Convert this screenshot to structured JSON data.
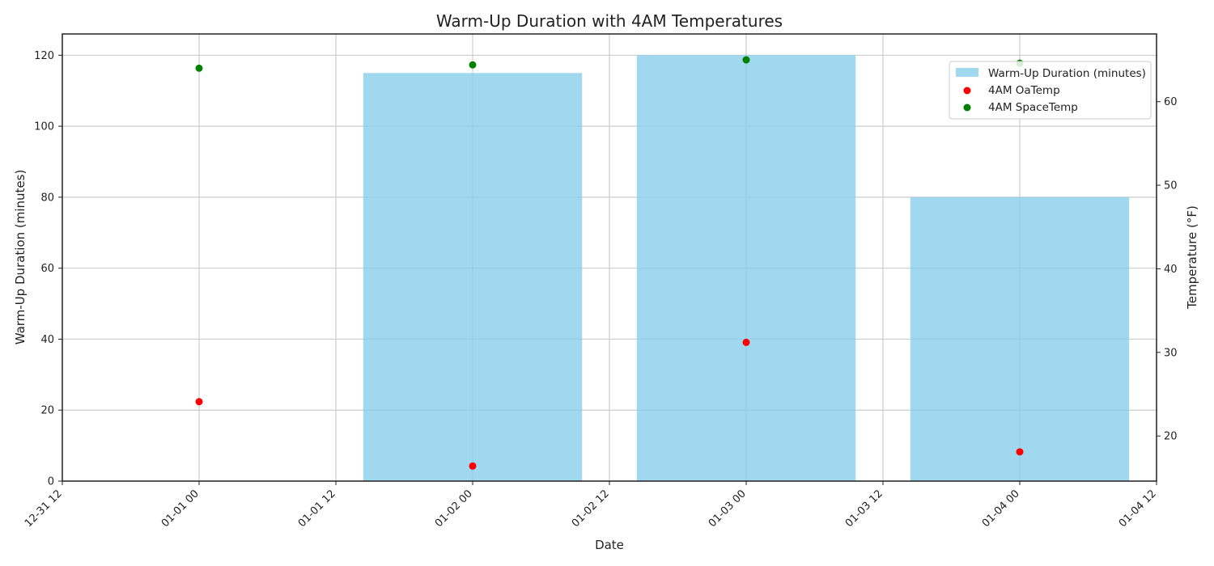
{
  "chart_data": {
    "type": "bar",
    "title": "Warm-Up Duration with 4AM Temperatures",
    "xlabel": "Date",
    "ylabel": "Warm-Up Duration (minutes)",
    "y2label": "Temperature (°F)",
    "x_dates": [
      "2021-01-01",
      "2021-01-02",
      "2021-01-03",
      "2021-01-04"
    ],
    "xlim": [
      "2020-12-31 12:00",
      "2021-01-04 12:00"
    ],
    "ylim": [
      0,
      126
    ],
    "y2lim": [
      14.6,
      68.1
    ],
    "xticks": [
      "12-31 12",
      "01-01 00",
      "01-01 12",
      "01-02 00",
      "01-02 12",
      "01-03 00",
      "01-03 12",
      "01-04 00",
      "01-04 12"
    ],
    "yticks": [
      "0",
      "20",
      "40",
      "60",
      "80",
      "100",
      "120"
    ],
    "y2ticks": [
      "20",
      "30",
      "40",
      "50",
      "60"
    ],
    "grid": true,
    "legend_position": "upper right",
    "series": [
      {
        "name": "Warm-Up Duration (minutes)",
        "kind": "bar",
        "axis": "left",
        "color": "#87ceeb",
        "values": [
          0,
          115,
          120,
          80
        ]
      },
      {
        "name": "4AM OaTemp",
        "kind": "scatter",
        "axis": "right",
        "color": "#ff0000",
        "values": [
          24.1,
          16.4,
          31.2,
          18.1
        ]
      },
      {
        "name": "4AM SpaceTemp",
        "kind": "scatter",
        "axis": "right",
        "color": "#008000",
        "values": [
          64.0,
          64.4,
          65.0,
          64.6
        ]
      }
    ]
  }
}
